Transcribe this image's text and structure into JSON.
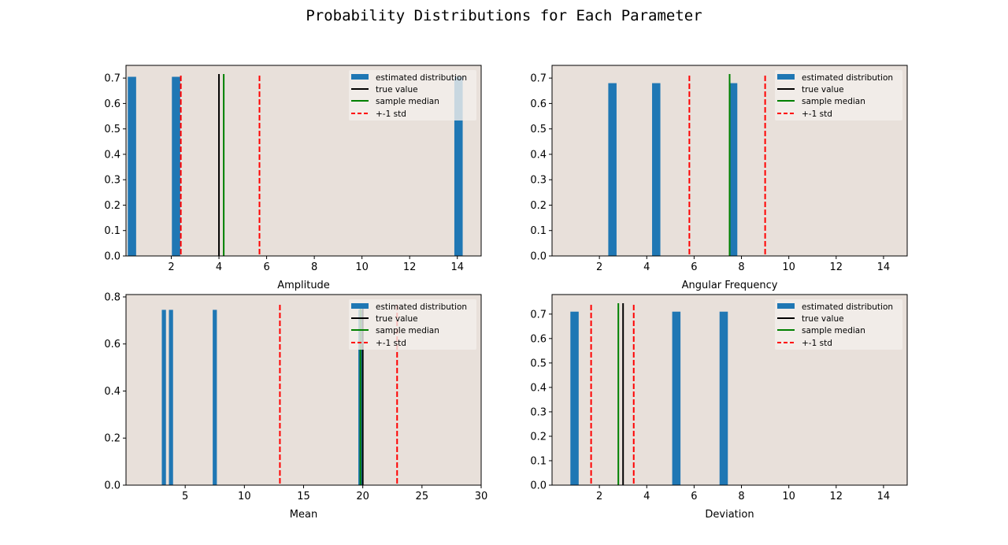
{
  "figure": {
    "title": "Probability Distributions for Each Parameter",
    "axes_background": "#e8e0da",
    "legend_background": "#f2efeb",
    "colors": {
      "bars": "#1f77b4",
      "true_value": "#000000",
      "median": "#008000",
      "std": "#ff0000"
    }
  },
  "chart_data": [
    {
      "type": "bar",
      "xlabel": "Amplitude",
      "xlim": [
        0.1,
        15.0
      ],
      "ylim": [
        0,
        0.75
      ],
      "xticks": [
        2,
        4,
        6,
        8,
        10,
        12,
        14
      ],
      "yticks": [
        0.0,
        0.1,
        0.2,
        0.3,
        0.4,
        0.5,
        0.6,
        0.7
      ],
      "ytick_labels": [
        "0.0",
        "0.1",
        "0.2",
        "0.3",
        "0.4",
        "0.5",
        "0.6",
        "0.7"
      ],
      "bar_width": 0.35,
      "bars": [
        {
          "x": 0.35,
          "height": 0.705
        },
        {
          "x": 2.2,
          "height": 0.705
        },
        {
          "x": 14.05,
          "height": 0.705
        }
      ],
      "true_value": 4.0,
      "sample_median": 4.2,
      "std_lines": [
        2.4,
        5.7
      ],
      "legend": [
        "estimated distribution",
        "true value",
        "sample median",
        "+-1 std"
      ],
      "legend_position": "upper right"
    },
    {
      "type": "bar",
      "xlabel": "Angular Frequency",
      "xlim": [
        0.0,
        15.0
      ],
      "ylim": [
        0,
        0.75
      ],
      "xticks": [
        2,
        4,
        6,
        8,
        10,
        12,
        14
      ],
      "yticks": [
        0.0,
        0.1,
        0.2,
        0.3,
        0.4,
        0.5,
        0.6,
        0.7
      ],
      "ytick_labels": [
        "0.0",
        "0.1",
        "0.2",
        "0.3",
        "0.4",
        "0.5",
        "0.6",
        "0.7"
      ],
      "bar_width": 0.35,
      "bars": [
        {
          "x": 2.55,
          "height": 0.68
        },
        {
          "x": 4.4,
          "height": 0.68
        },
        {
          "x": 7.65,
          "height": 0.68
        }
      ],
      "true_value": 7.5,
      "sample_median": 7.5,
      "std_lines": [
        5.8,
        9.0
      ],
      "legend": [
        "estimated distribution",
        "true value",
        "sample median",
        "+-1 std"
      ],
      "legend_position": "upper right"
    },
    {
      "type": "bar",
      "xlabel": "Mean",
      "xlim": [
        0.0,
        30.0
      ],
      "ylim": [
        0,
        0.81
      ],
      "xticks": [
        5,
        10,
        15,
        20,
        25,
        30
      ],
      "yticks": [
        0.0,
        0.2,
        0.4,
        0.6,
        0.8
      ],
      "ytick_labels": [
        "0.0",
        "0.2",
        "0.4",
        "0.6",
        "0.8"
      ],
      "bar_width": 0.35,
      "bars": [
        {
          "x": 3.2,
          "height": 0.745
        },
        {
          "x": 3.8,
          "height": 0.745
        },
        {
          "x": 7.5,
          "height": 0.745
        },
        {
          "x": 19.8,
          "height": 0.745
        }
      ],
      "true_value": 20.0,
      "sample_median": 19.8,
      "std_lines": [
        13.0,
        22.9
      ],
      "legend": [
        "estimated distribution",
        "true value",
        "sample median",
        "+-1 std"
      ],
      "legend_position": "upper right"
    },
    {
      "type": "bar",
      "xlabel": "Deviation",
      "xlim": [
        0.0,
        15.0
      ],
      "ylim": [
        0,
        0.78
      ],
      "xticks": [
        2,
        4,
        6,
        8,
        10,
        12,
        14
      ],
      "yticks": [
        0.0,
        0.1,
        0.2,
        0.3,
        0.4,
        0.5,
        0.6,
        0.7
      ],
      "ytick_labels": [
        "0.0",
        "0.1",
        "0.2",
        "0.3",
        "0.4",
        "0.5",
        "0.6",
        "0.7"
      ],
      "bar_width": 0.35,
      "bars": [
        {
          "x": 0.95,
          "height": 0.71
        },
        {
          "x": 5.25,
          "height": 0.71
        },
        {
          "x": 7.25,
          "height": 0.71
        }
      ],
      "true_value": 3.0,
      "sample_median": 2.8,
      "std_lines": [
        1.65,
        3.45
      ],
      "legend": [
        "estimated distribution",
        "true value",
        "sample median",
        "+-1 std"
      ],
      "legend_position": "upper right"
    }
  ]
}
